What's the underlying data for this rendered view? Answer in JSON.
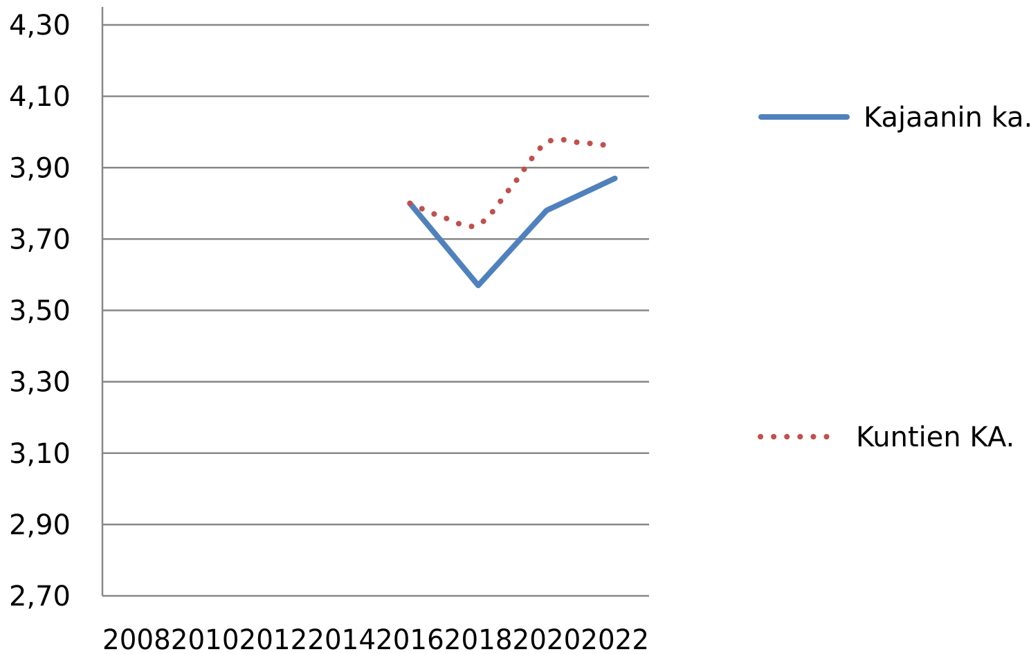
{
  "chart_data": {
    "type": "line",
    "title": "",
    "xlabel": "",
    "ylabel": "",
    "x": [
      2008,
      2010,
      2012,
      2014,
      2016,
      2018,
      2020,
      2022
    ],
    "x_tick_labels": [
      "2008",
      "2010",
      "2012",
      "2014",
      "2016",
      "2018",
      "2020",
      "2022"
    ],
    "y_tick_labels": [
      "2,70",
      "2,90",
      "3,10",
      "3,30",
      "3,50",
      "3,70",
      "3,90",
      "4,10",
      "4,30"
    ],
    "ylim": [
      2.7,
      4.3
    ],
    "grid": true,
    "legend_position": "right",
    "series": [
      {
        "name": "Kajaanin ka.",
        "style": "solid",
        "color": "#4F81BD",
        "points": [
          [
            2016,
            3.8
          ],
          [
            2018,
            3.57
          ],
          [
            2020,
            3.78
          ],
          [
            2022,
            3.87
          ]
        ]
      },
      {
        "name": "Kuntien KA.",
        "style": "dotted",
        "color": "#C0504D",
        "points": [
          [
            2016,
            3.8
          ],
          [
            2017,
            3.76
          ],
          [
            2018,
            3.74
          ],
          [
            2019,
            3.85
          ],
          [
            2020,
            3.97
          ],
          [
            2021,
            3.97
          ],
          [
            2022,
            3.96
          ]
        ]
      }
    ]
  }
}
